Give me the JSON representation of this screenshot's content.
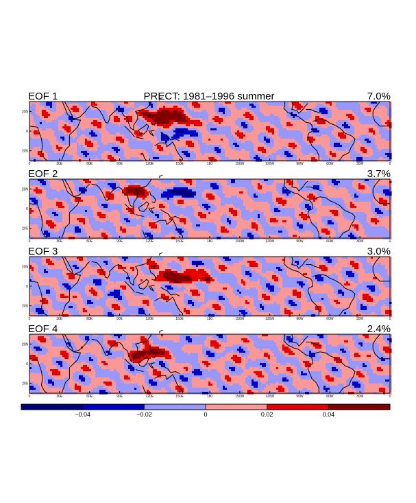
{
  "figure": {
    "main_title": "PRECT: 1981–1996 summer",
    "colors": {
      "background": "#ffffff",
      "coast": "#000000",
      "levels": [
        "#00007a",
        "#0000c8",
        "#9898fa",
        "#fa9898",
        "#e60000",
        "#800000"
      ]
    }
  },
  "chart_data": {
    "type": "heatmap",
    "variable": "PRECT",
    "period": "1981–1996 summer",
    "panels": [
      {
        "label": "EOF 1",
        "variance": "7.0%"
      },
      {
        "label": "EOF 2",
        "variance": "3.7%"
      },
      {
        "label": "EOF 3",
        "variance": "3.0%"
      },
      {
        "label": "EOF 4",
        "variance": "2.4%"
      }
    ],
    "x_ticks": [
      "0",
      "30E",
      "60E",
      "90E",
      "120E",
      "150E",
      "180",
      "150W",
      "120W",
      "90W",
      "60W",
      "30W",
      "0"
    ],
    "y_ticks": [
      "20N",
      "0",
      "20S"
    ],
    "x_range": [
      0,
      360
    ],
    "y_range": [
      -30,
      30
    ],
    "colorbar": {
      "labels": [
        "−0.04",
        "−0.02",
        "0",
        "0.02",
        "0.04"
      ],
      "levels": [
        -0.06,
        -0.04,
        -0.02,
        0,
        0.02,
        0.04,
        0.06
      ]
    },
    "features": [
      [
        {
          "lon": 141,
          "lat": 13,
          "rlon": 20,
          "rlat": 8,
          "v": 0.045
        },
        {
          "lon": 132,
          "lat": 14,
          "rlon": 9,
          "rlat": 6,
          "v": 0.06
        },
        {
          "lon": 150,
          "lat": 12,
          "rlon": 5,
          "rlat": 3,
          "v": 0.055
        },
        {
          "lon": 111,
          "lat": 19,
          "rlon": 6,
          "rlat": 3,
          "v": 0.03
        },
        {
          "lon": 100,
          "lat": 14,
          "rlon": 5,
          "rlat": 4,
          "v": 0.025
        },
        {
          "lon": 148,
          "lat": 0,
          "rlon": 16,
          "rlat": 5,
          "v": -0.04
        },
        {
          "lon": 123,
          "lat": 12,
          "rlon": 3,
          "rlat": 3,
          "v": -0.025
        },
        {
          "lon": 90,
          "lat": 22,
          "rlon": 3,
          "rlat": 2,
          "v": -0.025
        },
        {
          "lon": 146,
          "lat": -6,
          "rlon": 5,
          "rlat": 2,
          "v": -0.03
        }
      ],
      [
        {
          "lon": 108,
          "lat": 17,
          "rlon": 16,
          "rlat": 6,
          "v": 0.045
        },
        {
          "lon": 103,
          "lat": 19,
          "rlon": 5,
          "rlat": 3,
          "v": 0.055
        },
        {
          "lon": 126,
          "lat": 20,
          "rlon": 6,
          "rlat": 4,
          "v": -0.03
        },
        {
          "lon": 150,
          "lat": 15,
          "rlon": 16,
          "rlat": 5,
          "v": -0.04
        },
        {
          "lon": 160,
          "lat": 14,
          "rlon": 5,
          "rlat": 3,
          "v": -0.045
        },
        {
          "lon": 143,
          "lat": 18,
          "rlon": 5,
          "rlat": 3,
          "v": -0.035
        },
        {
          "lon": 180,
          "lat": -5,
          "rlon": 2,
          "rlat": 1.5,
          "v": 0.03
        }
      ],
      [
        {
          "lon": 140,
          "lat": 12,
          "rlon": 24,
          "rlat": 5,
          "v": 0.045
        },
        {
          "lon": 153,
          "lat": 6,
          "rlon": 20,
          "rlat": 4,
          "v": 0.055
        },
        {
          "lon": 178,
          "lat": 7,
          "rlon": 10,
          "rlat": 3,
          "v": 0.035
        },
        {
          "lon": 125,
          "lat": 20,
          "rlon": 6,
          "rlat": 3,
          "v": 0.03
        },
        {
          "lon": 168,
          "lat": 23,
          "rlon": 5,
          "rlat": 3,
          "v": -0.03
        },
        {
          "lon": 125,
          "lat": 13,
          "rlon": 4,
          "rlat": 3,
          "v": -0.025
        },
        {
          "lon": 87,
          "lat": -5,
          "rlon": 5,
          "rlat": 2,
          "v": -0.035
        },
        {
          "lon": 87,
          "lat": -10,
          "rlon": 3,
          "rlat": 2,
          "v": -0.025
        },
        {
          "lon": 80,
          "lat": -8,
          "rlon": 3,
          "rlat": 2,
          "v": -0.03
        },
        {
          "lon": 315,
          "lat": 7,
          "rlon": 2,
          "rlat": 3,
          "v": -0.03
        }
      ],
      [
        {
          "lon": 118,
          "lat": 12,
          "rlon": 15,
          "rlat": 6,
          "v": 0.04
        },
        {
          "lon": 110,
          "lat": 10,
          "rlon": 6,
          "rlat": 4,
          "v": 0.045
        },
        {
          "lon": 128,
          "lat": 13,
          "rlon": 6,
          "rlat": 3,
          "v": 0.035
        },
        {
          "lon": 151,
          "lat": 18,
          "rlon": 4,
          "rlat": 5,
          "v": -0.03
        },
        {
          "lon": 155,
          "lat": 10,
          "rlon": 3,
          "rlat": 3,
          "v": -0.025
        },
        {
          "lon": 165,
          "lat": 10,
          "rlon": 3,
          "rlat": 2,
          "v": -0.025
        },
        {
          "lon": 164,
          "lat": -9,
          "rlon": 5,
          "rlat": 4,
          "v": -0.035
        },
        {
          "lon": 263,
          "lat": 10,
          "rlon": 3,
          "rlat": 2,
          "v": 0.025
        },
        {
          "lon": 82,
          "lat": -7,
          "rlon": 2,
          "rlat": 2,
          "v": 0.025
        }
      ]
    ],
    "bands": [
      [
        {
          "lat": 9,
          "amp": 0.6,
          "seed": 1.3
        },
        {
          "lat": -8,
          "amp": 0.4,
          "seed": 2.7
        },
        {
          "lat": 25,
          "amp": 0.3,
          "seed": 3.9
        }
      ],
      [
        {
          "lat": 8,
          "amp": 0.5,
          "seed": 4.1
        },
        {
          "lat": -10,
          "amp": 0.55,
          "seed": 5.2
        },
        {
          "lat": 24,
          "amp": -0.3,
          "seed": 6.6
        }
      ],
      [
        {
          "lat": 5,
          "amp": -0.4,
          "seed": 7.4
        },
        {
          "lat": 18,
          "amp": 0.45,
          "seed": 8.8
        },
        {
          "lat": -12,
          "amp": 0.4,
          "seed": 9.5
        }
      ],
      [
        {
          "lat": 6,
          "amp": 0.45,
          "seed": 10.2
        },
        {
          "lat": -6,
          "amp": 0.35,
          "seed": 11.7
        },
        {
          "lat": 20,
          "amp": 0.4,
          "seed": 12.3
        }
      ]
    ]
  }
}
